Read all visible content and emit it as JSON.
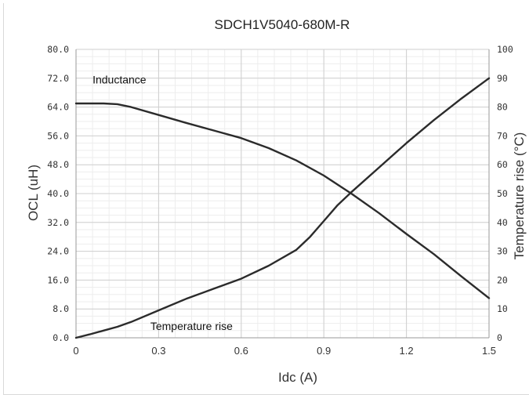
{
  "chart_data": {
    "type": "line",
    "title": "SDCH1V5040-680M-R",
    "xlabel": "Idc (A)",
    "ylabel": "OCL (uH)",
    "y2label": "Temperature rise (°C)",
    "xlim": [
      0,
      1.5
    ],
    "ylim": [
      0,
      80
    ],
    "y2lim": [
      0,
      100
    ],
    "x_ticks": [
      {
        "v": 0,
        "label": "0"
      },
      {
        "v": 0.3,
        "label": "0.3"
      },
      {
        "v": 0.6,
        "label": "0.6"
      },
      {
        "v": 0.9,
        "label": "0.9"
      },
      {
        "v": 1.2,
        "label": "1.2"
      },
      {
        "v": 1.5,
        "label": "1.5"
      }
    ],
    "y_ticks": [
      {
        "v": 0,
        "label": "0.0"
      },
      {
        "v": 8,
        "label": "8.0"
      },
      {
        "v": 16,
        "label": "16.0"
      },
      {
        "v": 24,
        "label": "24.0"
      },
      {
        "v": 32,
        "label": "32.0"
      },
      {
        "v": 40,
        "label": "40.0"
      },
      {
        "v": 48,
        "label": "48.0"
      },
      {
        "v": 56,
        "label": "56.0"
      },
      {
        "v": 64,
        "label": "64.0"
      },
      {
        "v": 72,
        "label": "72.0"
      },
      {
        "v": 80,
        "label": "80.0"
      }
    ],
    "y2_ticks": [
      {
        "v": 0,
        "label": "0"
      },
      {
        "v": 10,
        "label": "10"
      },
      {
        "v": 20,
        "label": "20"
      },
      {
        "v": 30,
        "label": "30"
      },
      {
        "v": 40,
        "label": "40"
      },
      {
        "v": 50,
        "label": "50"
      },
      {
        "v": 60,
        "label": "60"
      },
      {
        "v": 70,
        "label": "70"
      },
      {
        "v": 80,
        "label": "80"
      },
      {
        "v": 90,
        "label": "90"
      },
      {
        "v": 100,
        "label": "100"
      }
    ],
    "grid": true,
    "series": [
      {
        "name": "Inductance",
        "axis": "left",
        "color": "#2b2b2b",
        "x": [
          0,
          0.05,
          0.1,
          0.15,
          0.2,
          0.3,
          0.4,
          0.5,
          0.6,
          0.7,
          0.8,
          0.9,
          1.0,
          1.1,
          1.2,
          1.3,
          1.4,
          1.5
        ],
        "y": [
          65,
          65,
          65,
          64.8,
          64,
          61.8,
          59.6,
          57.5,
          55.4,
          52.6,
          49.2,
          45,
          40,
          34.6,
          28.8,
          23.2,
          17,
          11
        ]
      },
      {
        "name": "Temperature rise",
        "axis": "right",
        "color": "#2b2b2b",
        "x": [
          0,
          0.05,
          0.1,
          0.15,
          0.2,
          0.3,
          0.4,
          0.5,
          0.6,
          0.7,
          0.8,
          0.85,
          0.9,
          0.95,
          1.0,
          1.1,
          1.2,
          1.3,
          1.4,
          1.5
        ],
        "y": [
          0,
          1.2,
          2.5,
          3.8,
          5.5,
          9.5,
          13.5,
          17,
          20.5,
          25,
          30.5,
          35,
          40.5,
          46,
          50.5,
          59,
          67.5,
          75.5,
          83,
          90
        ]
      }
    ],
    "annotations": [
      {
        "text": "Inductance",
        "x": 0.06,
        "y": 70.5
      },
      {
        "text": "Temperature rise",
        "x": 0.27,
        "y": 2.2
      }
    ]
  }
}
